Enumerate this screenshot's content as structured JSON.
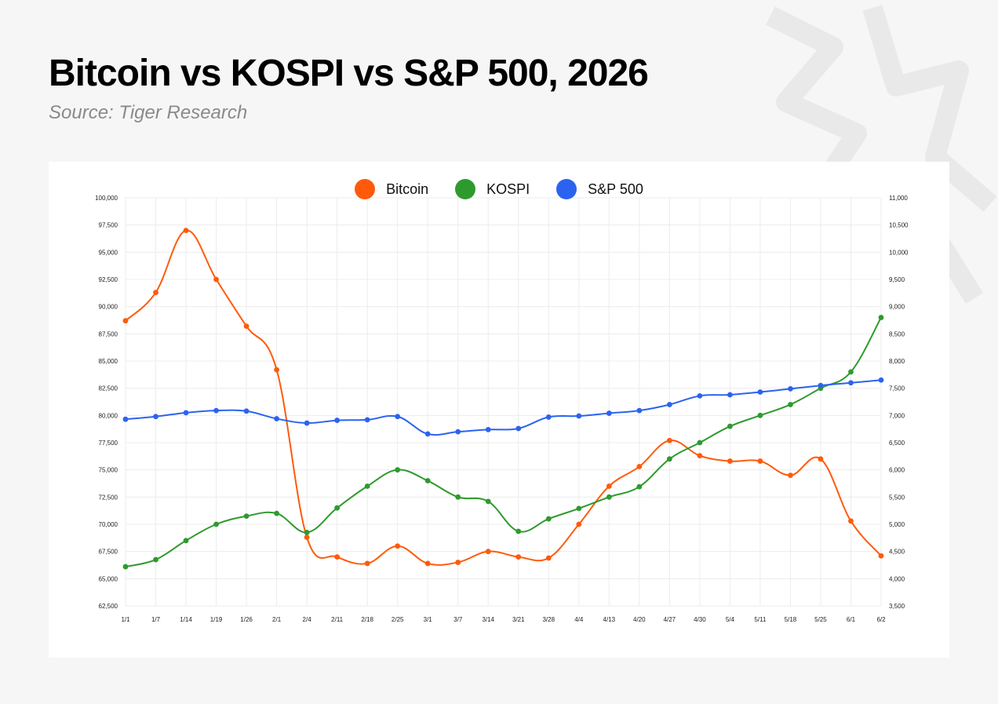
{
  "header": {
    "title": "Bitcoin vs KOSPI vs S&P 500, 2026",
    "subtitle": "Source: Tiger Research"
  },
  "colors": {
    "bitcoin": "#ff5a0a",
    "kospi": "#2e9a2e",
    "sp500": "#2b63f0",
    "grid": "#ececec"
  },
  "chart_data": {
    "type": "line",
    "title": "Bitcoin vs KOSPI vs S&P 500, 2026",
    "x": [
      "1/1",
      "1/7",
      "1/14",
      "1/19",
      "1/26",
      "2/1",
      "2/4",
      "2/11",
      "2/18",
      "2/25",
      "3/1",
      "3/7",
      "3/14",
      "3/21",
      "3/28",
      "4/4",
      "4/13",
      "4/20",
      "4/27",
      "4/30",
      "5/4",
      "5/11",
      "5/18",
      "5/25",
      "6/1",
      "6/2"
    ],
    "left_axis": {
      "min": 62500,
      "max": 100000,
      "step": 2500,
      "tick_labels": [
        "62,500",
        "65,000",
        "67,500",
        "70,000",
        "72,500",
        "75,000",
        "77,500",
        "80,000",
        "82,500",
        "85,000",
        "87,500",
        "90,000",
        "92,500",
        "95,000",
        "97,500",
        "100,000"
      ]
    },
    "right_axis": {
      "min": 3500,
      "max": 11000,
      "step": 500,
      "tick_labels": [
        "3,500",
        "4,000",
        "4,500",
        "5,000",
        "5,500",
        "6,000",
        "6,500",
        "7,000",
        "7,500",
        "8,000",
        "8,500",
        "9,000",
        "9,500",
        "10,000",
        "10,500",
        "11,000"
      ]
    },
    "grid": true,
    "legend_position": "top-center",
    "series": [
      {
        "name": "Bitcoin",
        "axis": "left",
        "color": "#ff5a0a",
        "values": [
          88700,
          91300,
          97000,
          92500,
          88200,
          84200,
          68800,
          67000,
          66400,
          68000,
          66400,
          66500,
          67500,
          67000,
          66900,
          70000,
          73500,
          75300,
          77700,
          76300,
          75800,
          75800,
          74500,
          76000,
          70300,
          67100
        ]
      },
      {
        "name": "KOSPI",
        "axis": "right",
        "color": "#2e9a2e",
        "values": [
          4220,
          4350,
          4700,
          5000,
          5150,
          5200,
          4850,
          5300,
          5700,
          6000,
          5800,
          5500,
          5420,
          4870,
          5100,
          5290,
          5500,
          5690,
          6200,
          6500,
          6800,
          7000,
          7200,
          7500,
          7800,
          8800
        ]
      },
      {
        "name": "S&P 500",
        "axis": "right",
        "color": "#2b63f0",
        "values": [
          6930,
          6980,
          7050,
          7090,
          7080,
          6940,
          6860,
          6910,
          6920,
          6980,
          6660,
          6700,
          6740,
          6760,
          6970,
          6990,
          7040,
          7090,
          7200,
          7360,
          7380,
          7430,
          7490,
          7550,
          7600,
          7650
        ]
      }
    ]
  }
}
